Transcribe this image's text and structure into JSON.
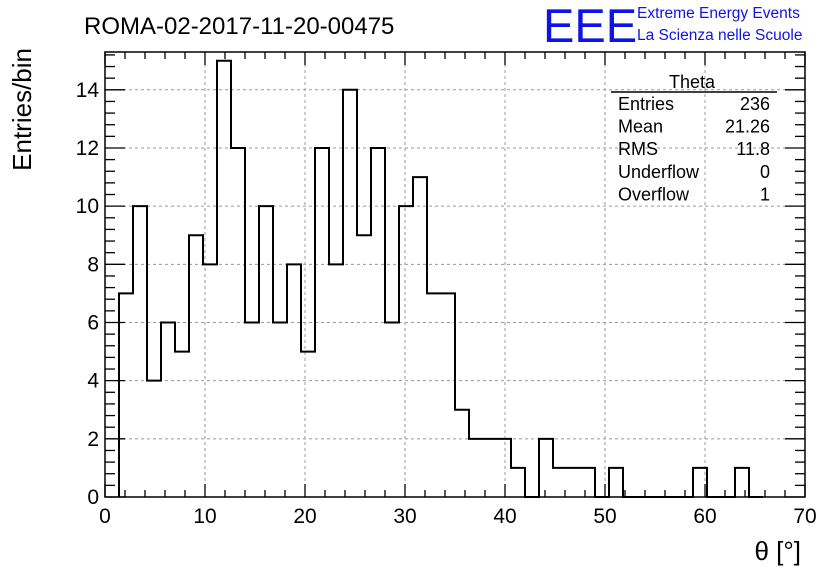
{
  "title": "ROMA-02-2017-11-20-00475",
  "logo": {
    "mark": "EEE",
    "line1": "Extreme Energy Events",
    "line2": "La Scienza nelle Scuole"
  },
  "stats": {
    "name": "Theta",
    "rows": [
      {
        "label": "Entries",
        "value": "236"
      },
      {
        "label": "Mean",
        "value": "21.26"
      },
      {
        "label": "RMS",
        "value": "11.8"
      },
      {
        "label": "Underflow",
        "value": "0"
      },
      {
        "label": "Overflow",
        "value": "1"
      }
    ]
  },
  "chart_data": {
    "type": "bar",
    "title": "ROMA-02-2017-11-20-00475",
    "xlabel": "θ [°]",
    "ylabel": "Entries/bin",
    "xlim": [
      0,
      70
    ],
    "ylim": [
      0,
      15.3
    ],
    "grid": true,
    "bin_edges_start": 1.4,
    "bin_width": 1.4,
    "values": [
      7,
      10,
      4,
      6,
      5,
      9,
      8,
      15,
      12,
      6,
      10,
      6,
      8,
      5,
      12,
      8,
      14,
      9,
      12,
      6,
      10,
      11,
      7,
      7,
      3,
      2,
      2,
      2,
      1,
      0,
      2,
      1,
      1,
      1,
      0,
      1,
      0,
      0,
      0,
      0,
      0,
      1,
      0,
      0,
      1,
      0
    ],
    "x_ticks": [
      0,
      10,
      20,
      30,
      40,
      50,
      60,
      70
    ],
    "y_ticks": [
      0,
      2,
      4,
      6,
      8,
      10,
      12,
      14
    ]
  }
}
